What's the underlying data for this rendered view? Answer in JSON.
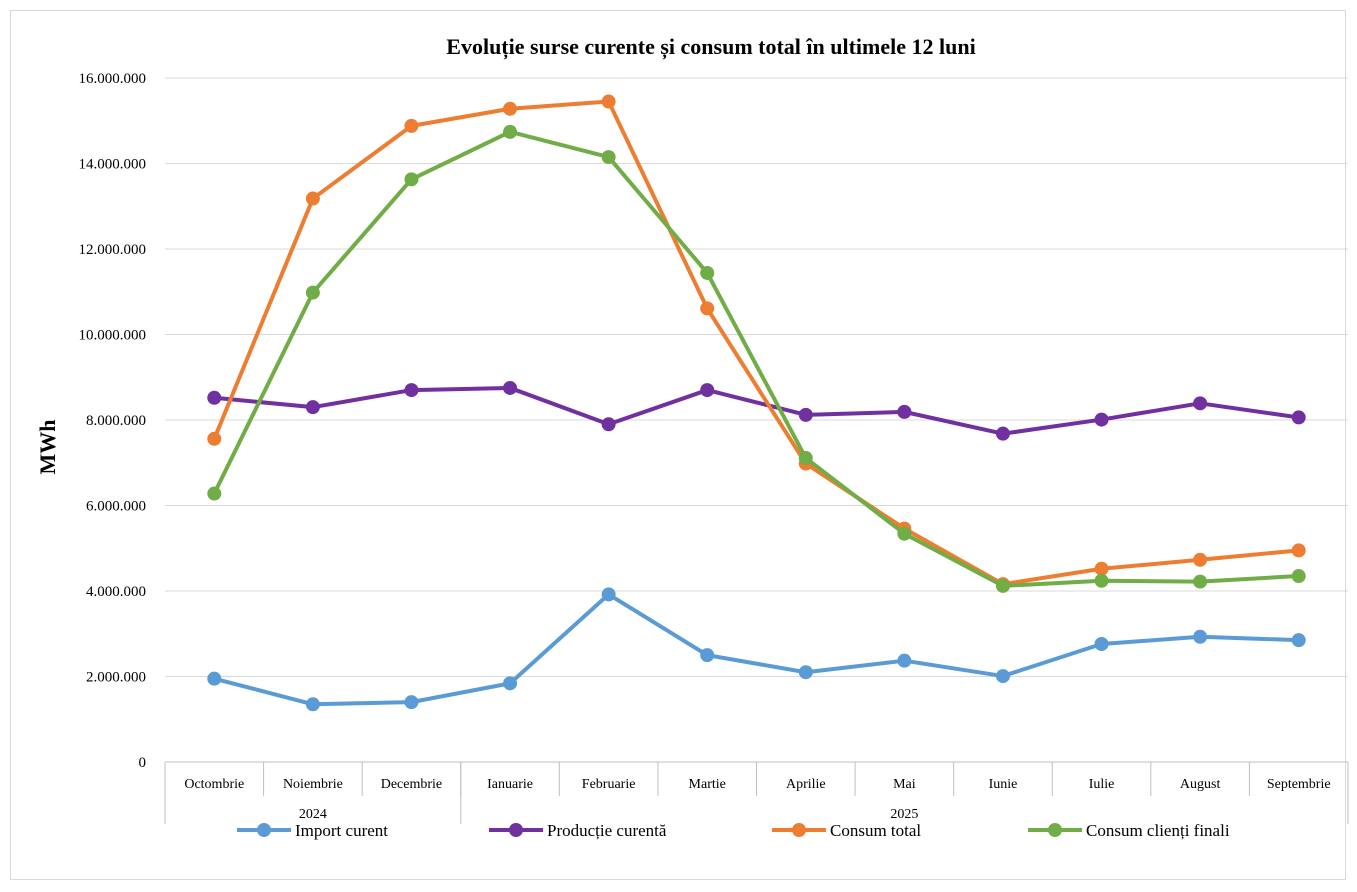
{
  "chart_data": {
    "type": "line",
    "title": "Evoluție surse curente și consum total în ultimele 12 luni",
    "ylabel": "MWh",
    "xlabel": "",
    "ylim": [
      0,
      16000000
    ],
    "yticks": [
      "0",
      "2.000.000",
      "4.000.000",
      "6.000.000",
      "8.000.000",
      "10.000.000",
      "12.000.000",
      "14.000.000",
      "16.000.000"
    ],
    "categories": [
      "Octombrie",
      "Noiembrie",
      "Decembrie",
      "Ianuarie",
      "Februarie",
      "Martie",
      "Aprilie",
      "Mai",
      "Iunie",
      "Iulie",
      "August",
      "Septembrie"
    ],
    "year_groups": [
      {
        "label": "2024",
        "span": 3
      },
      {
        "label": "2025",
        "span": 9
      }
    ],
    "grid": true,
    "legend_position": "bottom",
    "series": [
      {
        "name": "Import curent",
        "color": "#5b9bd5",
        "values": [
          1950000,
          1350000,
          1400000,
          1840000,
          3920000,
          2500000,
          2100000,
          2370000,
          2010000,
          2760000,
          2930000,
          2850000
        ]
      },
      {
        "name": "Producție curentă",
        "color": "#7030a0",
        "values": [
          8520000,
          8300000,
          8700000,
          8750000,
          7900000,
          8700000,
          8120000,
          8190000,
          7680000,
          8010000,
          8390000,
          8060000
        ]
      },
      {
        "name": "Consum total",
        "color": "#ed7d31",
        "values": [
          7560000,
          13180000,
          14880000,
          15280000,
          15450000,
          10610000,
          6980000,
          5460000,
          4160000,
          4520000,
          4730000,
          4950000
        ]
      },
      {
        "name": "Consum clienți finali",
        "color": "#70ad47",
        "values": [
          6280000,
          10980000,
          13630000,
          14740000,
          14150000,
          11440000,
          7110000,
          5340000,
          4120000,
          4240000,
          4220000,
          4350000
        ]
      }
    ]
  }
}
